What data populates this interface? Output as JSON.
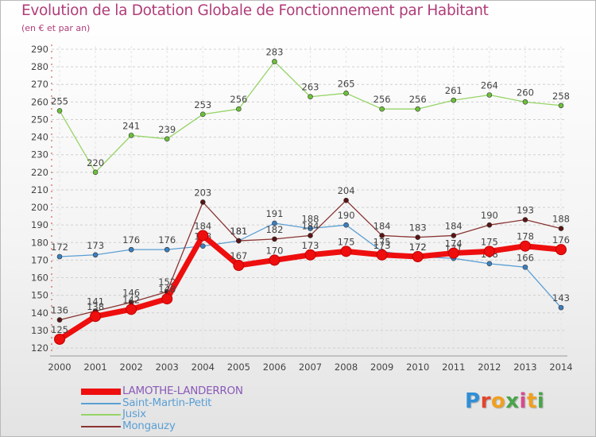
{
  "header": {
    "title": "Evolution de la Dotation Globale de Fonctionnement par Habitant",
    "subtitle": "(en € et par an)"
  },
  "logo": {
    "text": "Proxiti",
    "colors": [
      "#2f8fd6",
      "#e0462e",
      "#f0a020",
      "#4aa44a",
      "#d64a8e",
      "#f0a020",
      "#4aa44a"
    ]
  },
  "chart_data": {
    "type": "line",
    "title": "Evolution de la Dotation Globale de Fonctionnement par Habitant",
    "subtitle": "(en € et par an)",
    "xlabel": "",
    "ylabel": "",
    "x": [
      2000,
      2001,
      2002,
      2003,
      2004,
      2005,
      2006,
      2007,
      2008,
      2009,
      2010,
      2011,
      2012,
      2013,
      2014
    ],
    "ylim": [
      120,
      290
    ],
    "yticks": [
      120,
      130,
      140,
      150,
      160,
      170,
      180,
      190,
      200,
      210,
      220,
      230,
      240,
      250,
      260,
      270,
      280,
      290
    ],
    "grid": true,
    "legend_position": "bottom-left",
    "series": [
      {
        "name": "Saint-Martin-Petit",
        "color": "#5b9fd4",
        "marker": "#3a7fc0",
        "values": [
          172,
          173,
          176,
          176,
          178,
          181,
          191,
          188,
          190,
          175,
          172,
          171,
          168,
          166,
          143
        ],
        "labels": [
          "172",
          "173",
          "176",
          "176",
          "178",
          "181",
          "191",
          "188",
          "190",
          "175",
          "172",
          "171",
          "168",
          "166",
          "143"
        ]
      },
      {
        "name": "Jusix",
        "color": "#96d466",
        "marker": "#6cc03a",
        "values": [
          255,
          220,
          241,
          239,
          253,
          256,
          283,
          263,
          265,
          256,
          256,
          261,
          264,
          260,
          258
        ],
        "labels": [
          "255",
          "220",
          "241",
          "239",
          "253",
          "256",
          "283",
          "263",
          "265",
          "256",
          "256",
          "261",
          "264",
          "260",
          "258"
        ]
      },
      {
        "name": "Mongauzy",
        "color": "#8a3434",
        "marker": "#5a1414",
        "values": [
          136,
          141,
          146,
          152,
          203,
          181,
          182,
          184,
          204,
          184,
          183,
          184,
          190,
          193,
          188
        ],
        "labels": [
          "136",
          "141",
          "146",
          "152",
          "203",
          "181",
          "182",
          "184",
          "204",
          "184",
          "183",
          "184",
          "190",
          "193",
          "188"
        ]
      },
      {
        "name": "LAMOTHE-LANDERRON",
        "color": "#ee0e0e",
        "marker": "#ee0e0e",
        "values": [
          125,
          138,
          142,
          148,
          184,
          167,
          170,
          173,
          175,
          173,
          172,
          174,
          175,
          178,
          176
        ],
        "labels": [
          "125",
          "138",
          "142",
          "148",
          "184",
          "167",
          "170",
          "173",
          "175",
          "173",
          "172",
          "174",
          "175",
          "178",
          "176"
        ]
      }
    ]
  },
  "legend": {
    "items": [
      {
        "name": "LAMOTHE-LANDERRON",
        "color": "#ee0e0e",
        "label_color": "#8a5ab8"
      },
      {
        "name": "Saint-Martin-Petit",
        "color": "#5b9fd4",
        "label_color": "#5b9fd4"
      },
      {
        "name": "Jusix",
        "color": "#96d466",
        "label_color": "#5b9fd4"
      },
      {
        "name": "Mongauzy",
        "color": "#8a3434",
        "label_color": "#5b9fd4"
      }
    ]
  }
}
